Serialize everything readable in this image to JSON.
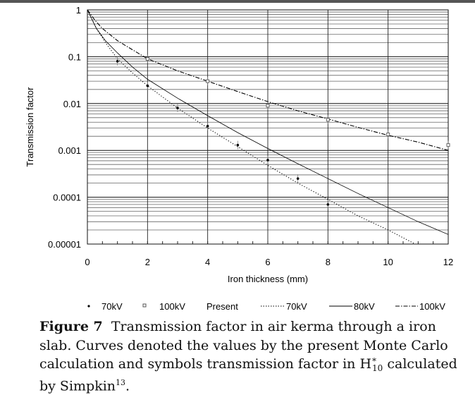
{
  "chart_data": {
    "type": "line",
    "title": "",
    "xlabel": "Iron thickness (mm)",
    "ylabel": "Transmission factor",
    "xlim": [
      0,
      12
    ],
    "ylim": [
      1e-05,
      1
    ],
    "yscale": "log",
    "xticks": [
      "0",
      "2",
      "4",
      "6",
      "8",
      "10",
      "12"
    ],
    "yticks": [
      "1",
      "0.1",
      "0.01",
      "0.001",
      "0.0001",
      "0.00001"
    ],
    "grid": true,
    "legend_position": "bottom",
    "legend": {
      "s70": "70kV",
      "s100": "100kV",
      "present": "Present",
      "c70": "70kV",
      "c80": "80kV",
      "c100": "100kV"
    },
    "series": [
      {
        "name": "70kV (Simpkin)",
        "kind": "points",
        "marker": "dot",
        "x": [
          1,
          2,
          3,
          4,
          5,
          6,
          7,
          8
        ],
        "y": [
          0.08,
          0.024,
          0.008,
          0.0033,
          0.0013,
          0.00062,
          0.00025,
          7e-05
        ]
      },
      {
        "name": "100kV (Simpkin)",
        "kind": "points",
        "marker": "square",
        "x": [
          2,
          4,
          6,
          8,
          10,
          12
        ],
        "y": [
          0.09,
          0.03,
          0.009,
          0.0045,
          0.0022,
          0.0013
        ]
      },
      {
        "name": "Present 70kV",
        "kind": "line",
        "dash": "dotted",
        "x": [
          0,
          0.3,
          0.6,
          1,
          1.5,
          2,
          3,
          4,
          5,
          6,
          7,
          8,
          9,
          10,
          10.9
        ],
        "y": [
          1,
          0.4,
          0.2,
          0.09,
          0.045,
          0.024,
          0.008,
          0.003,
          0.0012,
          0.00048,
          0.0002,
          9e-05,
          4e-05,
          2e-05,
          1e-05
        ]
      },
      {
        "name": "Present 80kV",
        "kind": "line",
        "dash": "solid",
        "x": [
          0,
          0.3,
          0.6,
          1,
          1.5,
          2,
          3,
          4,
          5,
          6,
          7,
          8,
          9,
          10,
          11,
          12
        ],
        "y": [
          1,
          0.4,
          0.22,
          0.12,
          0.06,
          0.033,
          0.013,
          0.0055,
          0.0024,
          0.0011,
          0.00052,
          0.00025,
          0.00012,
          6e-05,
          3e-05,
          1.6e-05
        ]
      },
      {
        "name": "Present 100kV",
        "kind": "line",
        "dash": "dashdot",
        "x": [
          0,
          0.25,
          0.5,
          1,
          2,
          3,
          4,
          5,
          6,
          7,
          8,
          9,
          10,
          11,
          12
        ],
        "y": [
          1,
          0.6,
          0.4,
          0.22,
          0.09,
          0.05,
          0.03,
          0.018,
          0.011,
          0.007,
          0.0047,
          0.0031,
          0.0021,
          0.0015,
          0.001
        ]
      }
    ]
  },
  "caption": {
    "label": "Figure 7",
    "text1": "Transmission factor in air kerma through a iron slab. Curves denoted the values by the present Monte Carlo calculation and symbols transmission factor in ",
    "h": "H",
    "h_sup": "*",
    "h_sub": "10",
    "text2": " calculated by Simpkin",
    "ref": "13",
    "end": "."
  }
}
